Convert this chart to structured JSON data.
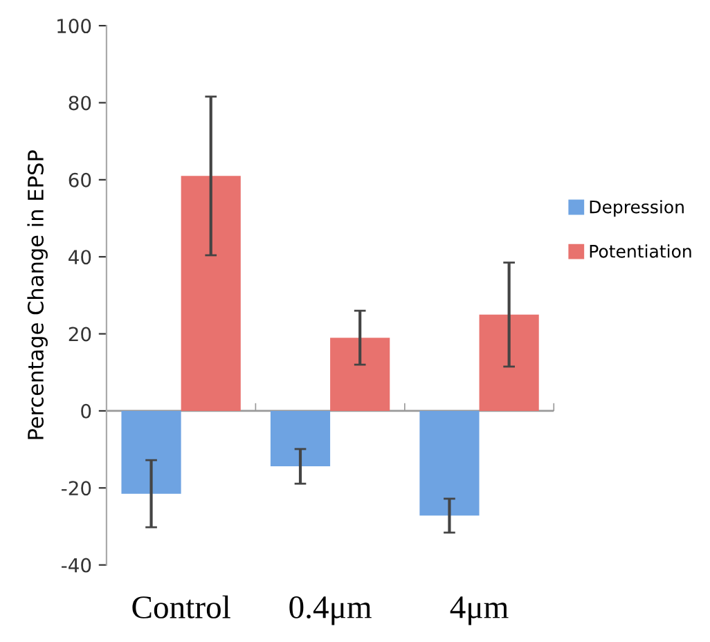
{
  "chart_data": {
    "type": "bar",
    "ylabel": "Percentage Change in EPSP",
    "categories": [
      "Control",
      "0.4μm",
      "4μm"
    ],
    "series": [
      {
        "name": "Depression",
        "color": "#6ea3e2",
        "values": [
          -21.5,
          -14.4,
          -27.2
        ],
        "errors": [
          8.7,
          4.5,
          4.4
        ]
      },
      {
        "name": "Potentiation",
        "color": "#e8726e",
        "values": [
          61,
          19,
          25
        ],
        "errors": [
          20.6,
          7,
          13.5
        ]
      }
    ],
    "ylim": [
      -40,
      100
    ],
    "yticks": [
      -40,
      -20,
      0,
      20,
      40,
      60,
      80,
      100
    ],
    "grid": false,
    "ref_lines": [
      {
        "axis": "y",
        "value": 0,
        "color": "#999999"
      }
    ],
    "legend": "right"
  }
}
